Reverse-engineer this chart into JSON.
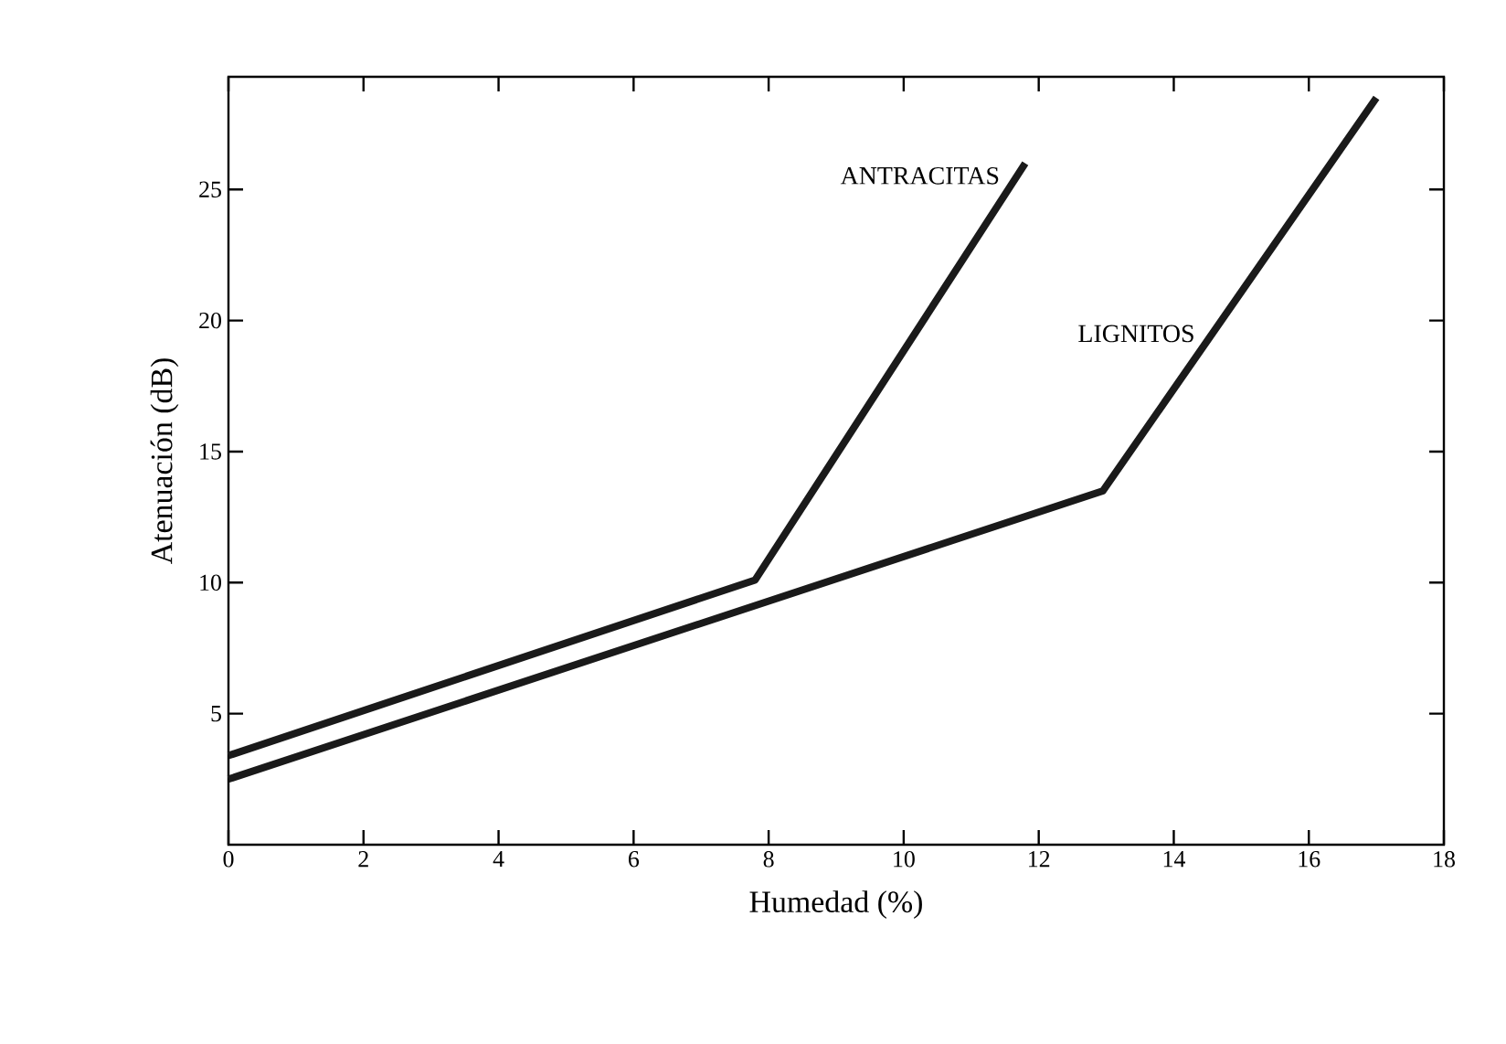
{
  "chart_data": {
    "type": "line",
    "xlabel": "Humedad (%)",
    "ylabel": "Atenuación (dB)",
    "xlim": [
      0,
      18
    ],
    "ylim": [
      0,
      29.3
    ],
    "xticks": [
      0,
      2,
      4,
      6,
      8,
      10,
      12,
      14,
      16,
      18
    ],
    "yticks": [
      5,
      10,
      15,
      20,
      25
    ],
    "grid": false,
    "legend": false,
    "marker": "none",
    "line_style": "solid",
    "series": [
      {
        "name": "ANTRACITAS",
        "color": "#1a1a1a",
        "x": [
          0,
          7.8,
          11.8
        ],
        "values": [
          3.4,
          10.1,
          26.0
        ]
      },
      {
        "name": "LIGNITOS",
        "color": "#1a1a1a",
        "x": [
          0,
          12.95,
          17.0
        ],
        "values": [
          2.5,
          13.5,
          28.5
        ]
      }
    ]
  }
}
